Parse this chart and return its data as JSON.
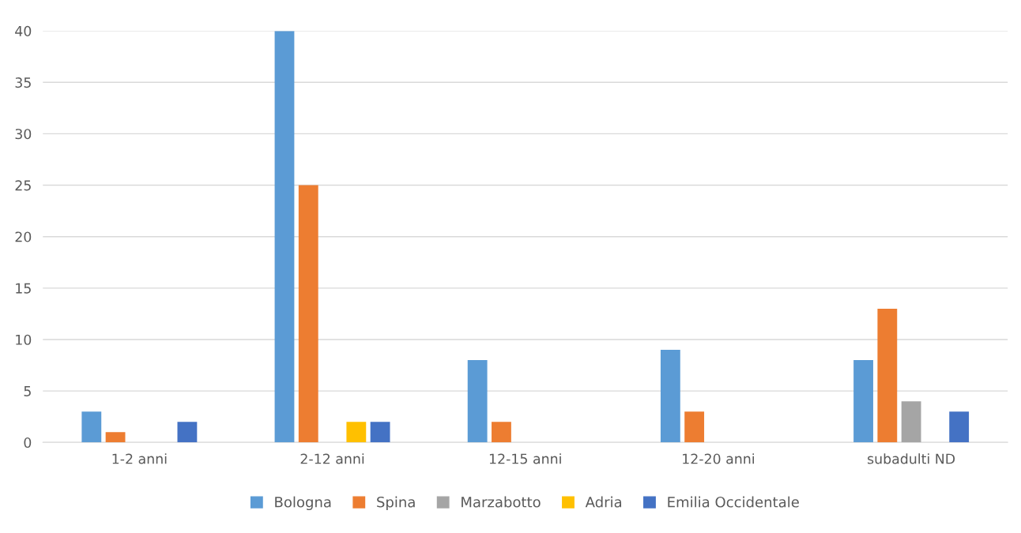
{
  "chart_data": {
    "type": "bar",
    "categories": [
      "1-2 anni",
      "2-12 anni",
      "12-15 anni",
      "12-20 anni",
      "subadulti ND"
    ],
    "series": [
      {
        "name": "Bologna",
        "color": "#5b9bd5",
        "values": [
          3,
          40,
          8,
          9,
          8
        ]
      },
      {
        "name": "Spina",
        "color": "#ed7d31",
        "values": [
          1,
          25,
          2,
          3,
          13
        ]
      },
      {
        "name": "Marzabotto",
        "color": "#a5a5a5",
        "values": [
          null,
          null,
          null,
          null,
          4
        ]
      },
      {
        "name": "Adria",
        "color": "#ffc000",
        "values": [
          null,
          2,
          null,
          null,
          null
        ]
      },
      {
        "name": "Emilia Occidentale",
        "color": "#4472c4",
        "values": [
          2,
          2,
          null,
          null,
          3
        ]
      }
    ],
    "ylim": [
      0,
      40
    ],
    "yticks": [
      0,
      5,
      10,
      15,
      20,
      25,
      30,
      35,
      40
    ],
    "grid": "y",
    "legend": "bottom"
  }
}
